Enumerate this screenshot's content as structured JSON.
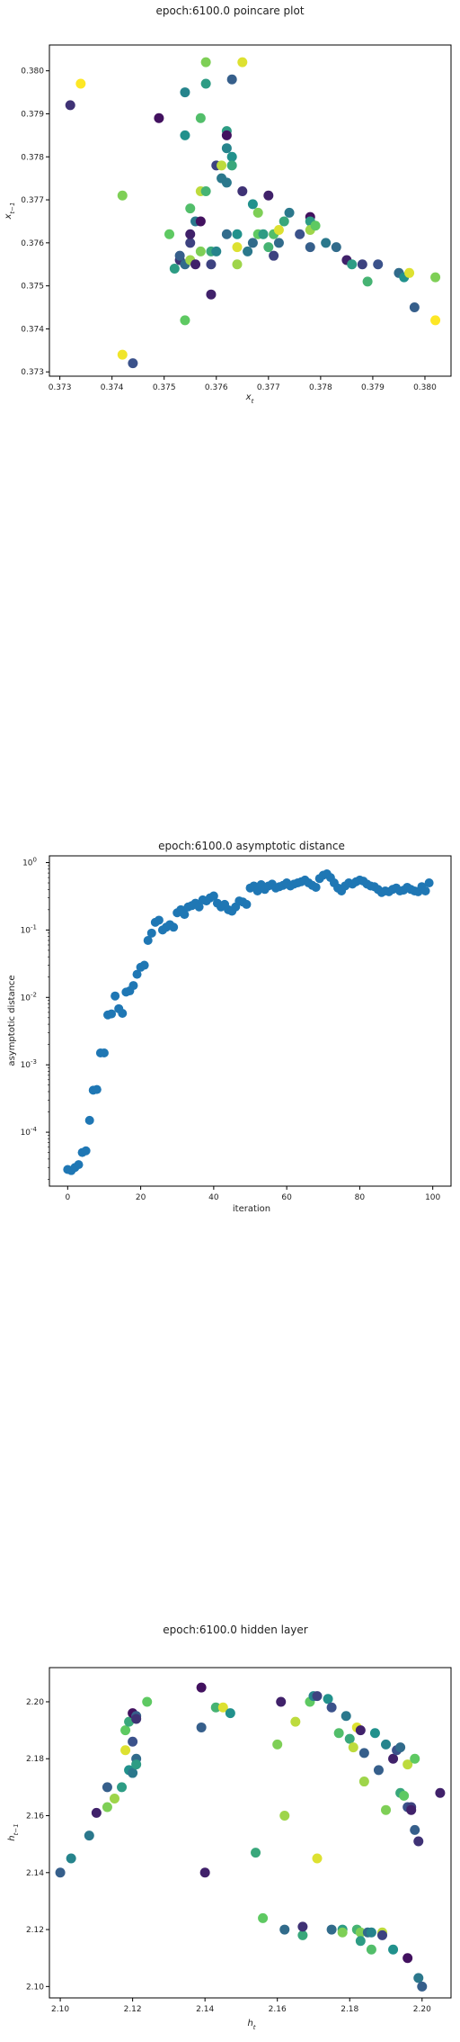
{
  "chart_data": [
    {
      "type": "scatter",
      "title": "epoch:6100.0 poincare plot",
      "xlabel": "x_t",
      "ylabel": "x_{t-1}",
      "xlim": [
        0.3728,
        0.3805
      ],
      "ylim": [
        0.3729,
        0.3806
      ],
      "xticks": [
        "0.373",
        "0.374",
        "0.375",
        "0.376",
        "0.377",
        "0.378",
        "0.379",
        "0.380"
      ],
      "yticks": [
        "0.373",
        "0.374",
        "0.375",
        "0.376",
        "0.377",
        "0.378",
        "0.379",
        "0.380"
      ],
      "colormap": "viridis",
      "points": [
        [
          0.3732,
          0.3792,
          0.15
        ],
        [
          0.3734,
          0.3797,
          1.0
        ],
        [
          0.3742,
          0.3734,
          0.98
        ],
        [
          0.3742,
          0.3771,
          0.8
        ],
        [
          0.3744,
          0.3732,
          0.25
        ],
        [
          0.3749,
          0.3789,
          0.05
        ],
        [
          0.3751,
          0.3762,
          0.75
        ],
        [
          0.3752,
          0.3754,
          0.55
        ],
        [
          0.3753,
          0.3756,
          0.15
        ],
        [
          0.3753,
          0.3757,
          0.3
        ],
        [
          0.3754,
          0.3795,
          0.45
        ],
        [
          0.3754,
          0.3785,
          0.5
        ],
        [
          0.3754,
          0.3742,
          0.75
        ],
        [
          0.3754,
          0.3755,
          0.35
        ],
        [
          0.3755,
          0.376,
          0.2
        ],
        [
          0.3755,
          0.3762,
          0.1
        ],
        [
          0.3755,
          0.3768,
          0.7
        ],
        [
          0.3755,
          0.3756,
          0.85
        ],
        [
          0.3756,
          0.3765,
          0.4
        ],
        [
          0.3756,
          0.3755,
          0.1
        ],
        [
          0.3757,
          0.3772,
          0.9
        ],
        [
          0.3757,
          0.3758,
          0.8
        ],
        [
          0.3757,
          0.3765,
          0.05
        ],
        [
          0.3757,
          0.3789,
          0.7
        ],
        [
          0.3758,
          0.3802,
          0.8
        ],
        [
          0.3758,
          0.3797,
          0.55
        ],
        [
          0.3758,
          0.3772,
          0.65
        ],
        [
          0.3759,
          0.3755,
          0.2
        ],
        [
          0.3759,
          0.3758,
          0.6
        ],
        [
          0.3759,
          0.3748,
          0.1
        ],
        [
          0.376,
          0.3778,
          0.2
        ],
        [
          0.376,
          0.3758,
          0.45
        ],
        [
          0.3761,
          0.3775,
          0.4
        ],
        [
          0.3761,
          0.3778,
          0.9
        ],
        [
          0.3762,
          0.3786,
          0.55
        ],
        [
          0.3762,
          0.3785,
          0.05
        ],
        [
          0.3762,
          0.3782,
          0.45
        ],
        [
          0.3762,
          0.3774,
          0.4
        ],
        [
          0.3762,
          0.3762,
          0.35
        ],
        [
          0.3763,
          0.3798,
          0.3
        ],
        [
          0.3763,
          0.378,
          0.5
        ],
        [
          0.3763,
          0.3778,
          0.6
        ],
        [
          0.3764,
          0.3759,
          0.95
        ],
        [
          0.3764,
          0.3755,
          0.85
        ],
        [
          0.3764,
          0.3762,
          0.5
        ],
        [
          0.3765,
          0.3802,
          0.95
        ],
        [
          0.3765,
          0.3772,
          0.15
        ],
        [
          0.3766,
          0.3758,
          0.4
        ],
        [
          0.3767,
          0.376,
          0.35
        ],
        [
          0.3767,
          0.3769,
          0.5
        ],
        [
          0.3768,
          0.3762,
          0.75
        ],
        [
          0.3768,
          0.3767,
          0.8
        ],
        [
          0.3769,
          0.3762,
          0.55
        ],
        [
          0.377,
          0.3771,
          0.1
        ],
        [
          0.377,
          0.3759,
          0.65
        ],
        [
          0.3771,
          0.3757,
          0.2
        ],
        [
          0.3771,
          0.3762,
          0.7
        ],
        [
          0.3772,
          0.3763,
          0.95
        ],
        [
          0.3772,
          0.376,
          0.35
        ],
        [
          0.3773,
          0.3765,
          0.6
        ],
        [
          0.3774,
          0.3767,
          0.4
        ],
        [
          0.3776,
          0.3762,
          0.25
        ],
        [
          0.3778,
          0.3759,
          0.3
        ],
        [
          0.3778,
          0.3766,
          0.05
        ],
        [
          0.3778,
          0.3765,
          0.55
        ],
        [
          0.3778,
          0.3763,
          0.85
        ],
        [
          0.3779,
          0.3764,
          0.75
        ],
        [
          0.3781,
          0.376,
          0.4
        ],
        [
          0.3783,
          0.3759,
          0.35
        ],
        [
          0.3785,
          0.3756,
          0.1
        ],
        [
          0.3786,
          0.3755,
          0.55
        ],
        [
          0.3788,
          0.3755,
          0.2
        ],
        [
          0.3789,
          0.3751,
          0.65
        ],
        [
          0.3791,
          0.3755,
          0.25
        ],
        [
          0.3795,
          0.3753,
          0.35
        ],
        [
          0.3796,
          0.3752,
          0.5
        ],
        [
          0.3797,
          0.3753,
          0.95
        ],
        [
          0.3798,
          0.3745,
          0.3
        ],
        [
          0.3802,
          0.3752,
          0.8
        ],
        [
          0.3802,
          0.3742,
          1.0
        ]
      ]
    },
    {
      "type": "scatter",
      "title": "epoch:6100.0 asymptotic distance",
      "xlabel": "iteration",
      "ylabel": "asymptotic distance",
      "xlim": [
        -5,
        105
      ],
      "ylim_log10": [
        -4.8,
        0.1
      ],
      "yscale": "log",
      "xticks": [
        "0",
        "20",
        "40",
        "60",
        "80",
        "100"
      ],
      "yticks_exponent": [
        "-4",
        "-3",
        "-2",
        "-1",
        "0"
      ],
      "color": "#1f77b4",
      "x": [
        0,
        1,
        2,
        3,
        4,
        5,
        6,
        7,
        8,
        9,
        10,
        11,
        12,
        13,
        14,
        15,
        16,
        17,
        18,
        19,
        20,
        21,
        22,
        23,
        24,
        25,
        26,
        27,
        28,
        29,
        30,
        31,
        32,
        33,
        34,
        35,
        36,
        37,
        38,
        39,
        40,
        41,
        42,
        43,
        44,
        45,
        46,
        47,
        48,
        49,
        50,
        51,
        52,
        53,
        54,
        55,
        56,
        57,
        58,
        59,
        60,
        61,
        62,
        63,
        64,
        65,
        66,
        67,
        68,
        69,
        70,
        71,
        72,
        73,
        74,
        75,
        76,
        77,
        78,
        79,
        80,
        81,
        82,
        83,
        84,
        85,
        86,
        87,
        88,
        89,
        90,
        91,
        92,
        93,
        94,
        95,
        96,
        97,
        98,
        99
      ],
      "y": [
        2.8e-05,
        2.7e-05,
        3e-05,
        3.3e-05,
        5e-05,
        5.3e-05,
        0.00015,
        0.00042,
        0.00043,
        0.0015,
        0.0015,
        0.0055,
        0.0057,
        0.0105,
        0.0068,
        0.0058,
        0.012,
        0.0125,
        0.015,
        0.022,
        0.028,
        0.03,
        0.07,
        0.09,
        0.13,
        0.14,
        0.1,
        0.11,
        0.12,
        0.11,
        0.18,
        0.2,
        0.17,
        0.22,
        0.23,
        0.25,
        0.22,
        0.28,
        0.27,
        0.3,
        0.32,
        0.25,
        0.22,
        0.24,
        0.2,
        0.19,
        0.22,
        0.27,
        0.26,
        0.24,
        0.42,
        0.45,
        0.38,
        0.47,
        0.4,
        0.45,
        0.48,
        0.42,
        0.44,
        0.46,
        0.5,
        0.45,
        0.48,
        0.5,
        0.52,
        0.55,
        0.5,
        0.46,
        0.43,
        0.58,
        0.65,
        0.68,
        0.6,
        0.5,
        0.42,
        0.38,
        0.45,
        0.5,
        0.48,
        0.52,
        0.55,
        0.53,
        0.48,
        0.45,
        0.44,
        0.4,
        0.36,
        0.38,
        0.37,
        0.4,
        0.42,
        0.38,
        0.39,
        0.43,
        0.4,
        0.38,
        0.37,
        0.44,
        0.38,
        0.5
      ]
    },
    {
      "type": "scatter",
      "title": "epoch:6100.0 hidden layer",
      "xlabel": "h_t",
      "ylabel": "h_{t-1}",
      "xlim": [
        2.097,
        2.208
      ],
      "ylim": [
        2.096,
        2.212
      ],
      "xticks": [
        "2.10",
        "2.12",
        "2.14",
        "2.16",
        "2.18",
        "2.20"
      ],
      "yticks": [
        "2.10",
        "2.12",
        "2.14",
        "2.16",
        "2.18",
        "2.20"
      ],
      "colormap": "viridis",
      "points": [
        [
          2.1,
          2.14,
          0.3
        ],
        [
          2.103,
          2.145,
          0.45
        ],
        [
          2.108,
          2.153,
          0.4
        ],
        [
          2.11,
          2.161,
          0.1
        ],
        [
          2.113,
          2.163,
          0.8
        ],
        [
          2.113,
          2.17,
          0.3
        ],
        [
          2.115,
          2.166,
          0.85
        ],
        [
          2.117,
          2.17,
          0.55
        ],
        [
          2.118,
          2.183,
          0.95
        ],
        [
          2.118,
          2.19,
          0.75
        ],
        [
          2.119,
          2.193,
          0.6
        ],
        [
          2.119,
          2.176,
          0.5
        ],
        [
          2.12,
          2.175,
          0.4
        ],
        [
          2.12,
          2.196,
          0.05
        ],
        [
          2.12,
          2.186,
          0.25
        ],
        [
          2.121,
          2.195,
          0.3
        ],
        [
          2.121,
          2.194,
          0.15
        ],
        [
          2.121,
          2.18,
          0.35
        ],
        [
          2.121,
          2.178,
          0.55
        ],
        [
          2.124,
          2.2,
          0.75
        ],
        [
          2.139,
          2.205,
          0.05
        ],
        [
          2.139,
          2.191,
          0.3
        ],
        [
          2.14,
          2.14,
          0.1
        ],
        [
          2.143,
          2.198,
          0.65
        ],
        [
          2.145,
          2.198,
          0.95
        ],
        [
          2.147,
          2.196,
          0.5
        ],
        [
          2.154,
          2.147,
          0.6
        ],
        [
          2.156,
          2.124,
          0.75
        ],
        [
          2.16,
          2.185,
          0.8
        ],
        [
          2.161,
          2.2,
          0.1
        ],
        [
          2.162,
          2.16,
          0.85
        ],
        [
          2.162,
          2.12,
          0.35
        ],
        [
          2.165,
          2.193,
          0.9
        ],
        [
          2.167,
          2.118,
          0.6
        ],
        [
          2.167,
          2.121,
          0.15
        ],
        [
          2.169,
          2.2,
          0.75
        ],
        [
          2.17,
          2.202,
          0.45
        ],
        [
          2.171,
          2.202,
          0.2
        ],
        [
          2.171,
          2.145,
          0.95
        ],
        [
          2.174,
          2.201,
          0.5
        ],
        [
          2.175,
          2.198,
          0.25
        ],
        [
          2.175,
          2.12,
          0.35
        ],
        [
          2.177,
          2.189,
          0.7
        ],
        [
          2.178,
          2.12,
          0.55
        ],
        [
          2.178,
          2.119,
          0.8
        ],
        [
          2.179,
          2.195,
          0.4
        ],
        [
          2.18,
          2.187,
          0.6
        ],
        [
          2.181,
          2.184,
          0.9
        ],
        [
          2.182,
          2.191,
          0.95
        ],
        [
          2.182,
          2.12,
          0.65
        ],
        [
          2.183,
          2.19,
          0.1
        ],
        [
          2.183,
          2.119,
          0.8
        ],
        [
          2.183,
          2.116,
          0.55
        ],
        [
          2.184,
          2.172,
          0.85
        ],
        [
          2.184,
          2.182,
          0.3
        ],
        [
          2.185,
          2.119,
          0.35
        ],
        [
          2.186,
          2.113,
          0.7
        ],
        [
          2.186,
          2.119,
          0.45
        ],
        [
          2.187,
          2.189,
          0.5
        ],
        [
          2.188,
          2.176,
          0.3
        ],
        [
          2.189,
          2.119,
          0.9
        ],
        [
          2.189,
          2.118,
          0.2
        ],
        [
          2.19,
          2.185,
          0.45
        ],
        [
          2.19,
          2.162,
          0.8
        ],
        [
          2.192,
          2.113,
          0.5
        ],
        [
          2.192,
          2.18,
          0.1
        ],
        [
          2.193,
          2.183,
          0.25
        ],
        [
          2.194,
          2.168,
          0.6
        ],
        [
          2.194,
          2.184,
          0.35
        ],
        [
          2.195,
          2.167,
          0.75
        ],
        [
          2.196,
          2.178,
          0.9
        ],
        [
          2.196,
          2.11,
          0.05
        ],
        [
          2.196,
          2.163,
          0.25
        ],
        [
          2.197,
          2.163,
          0.2
        ],
        [
          2.197,
          2.162,
          0.1
        ],
        [
          2.198,
          2.18,
          0.75
        ],
        [
          2.198,
          2.155,
          0.3
        ],
        [
          2.199,
          2.151,
          0.15
        ],
        [
          2.199,
          2.103,
          0.4
        ],
        [
          2.2,
          2.1,
          0.3
        ],
        [
          2.205,
          2.168,
          0.1
        ]
      ]
    }
  ]
}
